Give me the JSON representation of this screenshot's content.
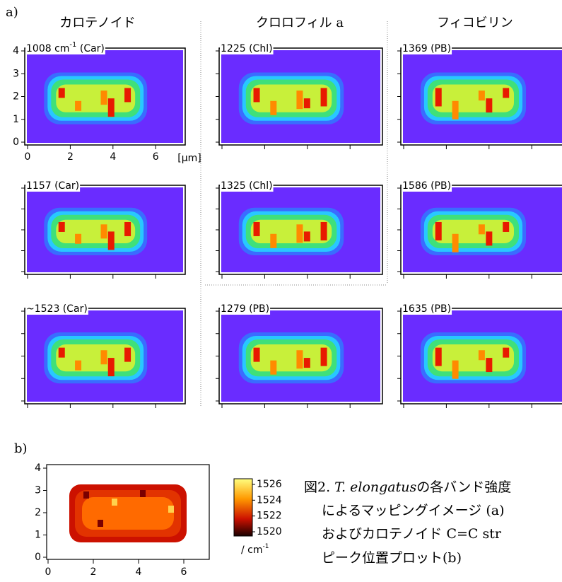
{
  "figure_a": {
    "label": "a)",
    "column_titles": [
      "カロテノイド",
      "クロロフィル a",
      "フィコビリン"
    ],
    "panels": [
      {
        "label_pre": "1008 cm",
        "label_sup": "-1",
        "label_post": " (Car)"
      },
      {
        "label": "1225 (Chl)"
      },
      {
        "label": "1369 (PB)"
      },
      {
        "label": "1157 (Car)"
      },
      {
        "label": "1325 (Chl)"
      },
      {
        "label": "1586 (PB)"
      },
      {
        "label": "~1523 (Car)"
      },
      {
        "label": "1279 (PB)"
      },
      {
        "label": "1635 (PB)"
      }
    ],
    "yticks": [
      0,
      1,
      2,
      3,
      4
    ],
    "xticks": [
      0,
      2,
      4,
      6
    ],
    "x_unit": "[μm]"
  },
  "figure_b": {
    "label": "b)",
    "yticks": [
      0,
      1,
      2,
      3,
      4
    ],
    "xticks": [
      0,
      2,
      4,
      6
    ],
    "colorbar_ticks": [
      1526,
      1524,
      1522,
      1520
    ],
    "colorbar_unit": "/ cm",
    "colorbar_unit_sup": "-1"
  },
  "caption": {
    "prefix": "図2. ",
    "species": "T. elongatus",
    "line1_rest": "の各バンド強度",
    "line2": "によるマッピングイメージ (a)",
    "line3": "およびカロテノイド C=C str",
    "line4": "ピーク位置プロット(b)"
  }
}
